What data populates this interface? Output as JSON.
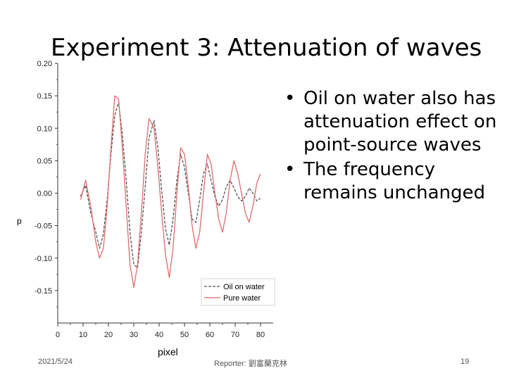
{
  "slide": {
    "title": "Experiment 3: Attenuation of waves",
    "bullets": [
      "Oil on water also has attenuation effect on point-source waves",
      "The frequency remains unchanged"
    ],
    "footer": {
      "date": "2021/5/24",
      "reporter": "Reporter: 劉富蘭克林",
      "page": "19"
    }
  },
  "chart_data": {
    "type": "line",
    "xlabel": "pixel",
    "ylabel": "",
    "xlim": [
      0,
      85
    ],
    "ylim": [
      -0.2,
      0.2
    ],
    "x_ticks": [
      0,
      10,
      20,
      30,
      40,
      50,
      60,
      70,
      80
    ],
    "y_ticks": [
      0.2,
      0.15,
      0.1,
      0.05,
      0.0,
      -0.05,
      -0.1,
      -0.15
    ],
    "y_tick_labels": [
      "0.20",
      "0.15",
      "0.10",
      "0.05",
      "0.00",
      "-0.05",
      "-0.10",
      "-0.15"
    ],
    "legend_position": "bottom-right",
    "series": [
      {
        "name": "Oil on water",
        "color": "#555555",
        "style": "dashed",
        "x": [
          9,
          11,
          13,
          15,
          16.5,
          18,
          19.5,
          21,
          22.5,
          24,
          25.5,
          27,
          28.5,
          30,
          31.5,
          33,
          34.5,
          36,
          38,
          39.5,
          41,
          42.5,
          44,
          45.5,
          47,
          48.5,
          50,
          51.5,
          53,
          54.5,
          56,
          57.5,
          59,
          60.5,
          62,
          63.5,
          65,
          66.5,
          68,
          69.5,
          71,
          72.5,
          74,
          75.5,
          77,
          78.5,
          80
        ],
        "y": [
          -0.005,
          0.012,
          -0.03,
          -0.06,
          -0.085,
          -0.063,
          -0.01,
          0.06,
          0.12,
          0.14,
          0.09,
          0.02,
          -0.06,
          -0.11,
          -0.115,
          -0.06,
          0.01,
          0.085,
          0.112,
          0.07,
          0.005,
          -0.055,
          -0.08,
          -0.04,
          0.02,
          0.06,
          0.04,
          0.0,
          -0.04,
          -0.045,
          -0.01,
          0.03,
          0.045,
          0.02,
          -0.005,
          -0.02,
          -0.01,
          0.01,
          0.02,
          0.008,
          -0.005,
          -0.012,
          -0.005,
          0.008,
          0.0,
          -0.012,
          -0.008
        ]
      },
      {
        "name": "Pure water",
        "color": "#e06b6b",
        "style": "solid",
        "x": [
          9,
          11,
          13,
          15,
          16.5,
          18,
          19.5,
          21,
          22.5,
          24,
          25.5,
          27,
          28.5,
          30,
          31.5,
          33,
          34.5,
          36,
          38,
          39.5,
          41,
          42.5,
          44,
          45.5,
          47,
          48.5,
          50,
          51.5,
          53,
          54.5,
          56,
          57.5,
          59,
          60.5,
          62,
          63.5,
          65,
          66.5,
          68,
          69.5,
          71,
          72.5,
          74,
          75.5,
          77,
          78.5,
          80
        ],
        "y": [
          -0.01,
          0.02,
          -0.02,
          -0.075,
          -0.1,
          -0.085,
          -0.02,
          0.07,
          0.15,
          0.145,
          0.07,
          -0.02,
          -0.11,
          -0.145,
          -0.11,
          -0.03,
          0.06,
          0.115,
          0.1,
          0.04,
          -0.03,
          -0.095,
          -0.13,
          -0.085,
          0.0,
          0.07,
          0.06,
          0.01,
          -0.05,
          -0.085,
          -0.06,
          0.0,
          0.06,
          0.045,
          0.0,
          -0.04,
          -0.06,
          -0.03,
          0.02,
          0.05,
          0.03,
          0.0,
          -0.03,
          -0.045,
          -0.02,
          0.015,
          0.03
        ]
      }
    ]
  }
}
